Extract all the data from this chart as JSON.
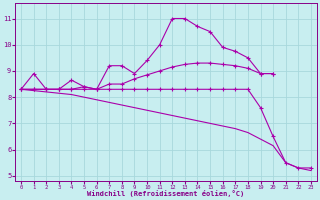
{
  "background_color": "#c8eef0",
  "grid_color": "#a8d8dc",
  "line_color": "#aa00aa",
  "xlabel": "Windchill (Refroidissement éolien,°C)",
  "xlim": [
    -0.5,
    23.5
  ],
  "ylim": [
    4.8,
    11.6
  ],
  "yticks": [
    5,
    6,
    7,
    8,
    9,
    10,
    11
  ],
  "xticks": [
    0,
    1,
    2,
    3,
    4,
    5,
    6,
    7,
    8,
    9,
    10,
    11,
    12,
    13,
    14,
    15,
    16,
    17,
    18,
    19,
    20,
    21,
    22,
    23
  ],
  "curve1_x": [
    0,
    1,
    2,
    3,
    4,
    5,
    6,
    7,
    8,
    9,
    10,
    11,
    12,
    13,
    14,
    15,
    16,
    17,
    18,
    19,
    20
  ],
  "curve1_y": [
    8.3,
    8.9,
    8.3,
    8.3,
    8.65,
    8.4,
    8.3,
    9.2,
    9.2,
    8.9,
    9.4,
    10.0,
    11.0,
    11.0,
    10.7,
    10.5,
    9.9,
    9.75,
    9.5,
    8.9,
    8.9
  ],
  "curve2_x": [
    0,
    1,
    2,
    3,
    4,
    5,
    6,
    7,
    8,
    9,
    10,
    11,
    12,
    13,
    14,
    15,
    16,
    17,
    18,
    19,
    20
  ],
  "curve2_y": [
    8.3,
    8.3,
    8.3,
    8.3,
    8.3,
    8.4,
    8.3,
    8.5,
    8.5,
    8.7,
    8.85,
    9.0,
    9.15,
    9.25,
    9.3,
    9.3,
    9.25,
    9.2,
    9.1,
    8.9,
    8.9
  ],
  "curve3_x": [
    0,
    1,
    2,
    3,
    4,
    5,
    6,
    7,
    8,
    9,
    10,
    11,
    12,
    13,
    14,
    15,
    16,
    17,
    18,
    19,
    20,
    21,
    22,
    23
  ],
  "curve3_y": [
    8.3,
    8.3,
    8.3,
    8.3,
    8.3,
    8.3,
    8.3,
    8.3,
    8.3,
    8.3,
    8.3,
    8.3,
    8.3,
    8.3,
    8.3,
    8.3,
    8.3,
    8.3,
    8.3,
    7.6,
    6.5,
    5.5,
    5.3,
    5.3
  ],
  "curve4_x": [
    0,
    1,
    2,
    3,
    4,
    5,
    6,
    7,
    8,
    9,
    10,
    11,
    12,
    13,
    14,
    15,
    16,
    17,
    18,
    19,
    20,
    21,
    22,
    23
  ],
  "curve4_y": [
    8.3,
    8.25,
    8.2,
    8.15,
    8.1,
    8.0,
    7.9,
    7.8,
    7.7,
    7.6,
    7.5,
    7.4,
    7.3,
    7.2,
    7.1,
    7.0,
    6.9,
    6.8,
    6.65,
    6.4,
    6.15,
    5.5,
    5.3,
    5.2
  ]
}
